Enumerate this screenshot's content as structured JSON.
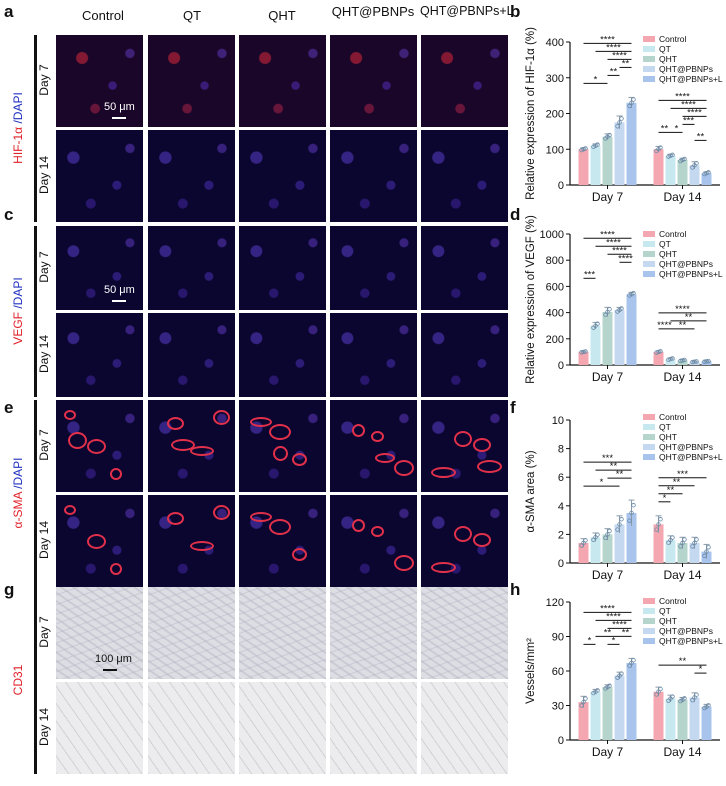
{
  "panel_letters": {
    "a": "a",
    "b": "b",
    "c": "c",
    "d": "d",
    "e": "e",
    "f": "f",
    "g": "g",
    "h": "h"
  },
  "columns": [
    "Control",
    "QT",
    "QHT",
    "QHT@PBNPs",
    "QHT@PBNPs+L"
  ],
  "days": [
    "Day 7",
    "Day 14"
  ],
  "stains": [
    {
      "first": "HIF-1α",
      "sep": " /",
      "second": "DAPI",
      "first_color": "#e0202a",
      "second_color": "#2030c0"
    },
    {
      "first": "VEGF",
      "sep": " /",
      "second": "DAPI",
      "first_color": "#e0202a",
      "second_color": "#2030c0"
    },
    {
      "first": "α-SMA",
      "sep": " /",
      "second": "DAPI",
      "first_color": "#e0202a",
      "second_color": "#2030c0"
    },
    {
      "first": "CD31",
      "sep": "",
      "second": "",
      "first_color": "#e0202a",
      "second_color": "#2030c0"
    }
  ],
  "scale_bars": [
    "50 μm",
    "50 μm",
    "",
    "100 μm"
  ],
  "legend": [
    "Control",
    "QT",
    "QHT",
    "QHT@PBNPs",
    "QHT@PBNPs+L"
  ],
  "series_colors": [
    "#f4a7b0",
    "#c8e8f0",
    "#b4d4cc",
    "#c4d8f0",
    "#a8c4ec"
  ],
  "chart_data": [
    {
      "type": "bar",
      "panel": "b",
      "categories": [
        "Day 7",
        "Day 14"
      ],
      "ylabel": "Relative expression of HIF-1α (%)",
      "ylim": [
        0,
        400
      ],
      "yticks": [
        0,
        100,
        200,
        300,
        400
      ],
      "series": [
        {
          "name": "Control",
          "values": [
            100,
            100
          ]
        },
        {
          "name": "QT",
          "values": [
            110,
            82
          ]
        },
        {
          "name": "QHT",
          "values": [
            135,
            70
          ]
        },
        {
          "name": "QHT@PBNPs",
          "values": [
            175,
            55
          ]
        },
        {
          "name": "QHT@PBNPs+L",
          "values": [
            230,
            33
          ]
        }
      ],
      "errors": [
        [
          4,
          8
        ],
        [
          5,
          4
        ],
        [
          8,
          5
        ],
        [
          18,
          10
        ],
        [
          15,
          4
        ]
      ],
      "sig": [
        [
          [
            "****"
          ],
          [
            "****"
          ],
          [
            "****"
          ],
          [
            "**"
          ],
          [
            "**"
          ],
          [
            "*"
          ]
        ],
        [
          [
            "****"
          ],
          [
            "****"
          ],
          [
            "****"
          ],
          [
            "***"
          ],
          [
            "*"
          ],
          [
            "**"
          ],
          [
            "**"
          ]
        ]
      ],
      "brackets": [
        {
          "g": 0,
          "from": 0,
          "to": 4,
          "level": 6,
          "label": "****"
        },
        {
          "g": 0,
          "from": 1,
          "to": 4,
          "level": 5,
          "label": "****"
        },
        {
          "g": 0,
          "from": 2,
          "to": 4,
          "level": 4,
          "label": "****"
        },
        {
          "g": 0,
          "from": 3,
          "to": 4,
          "level": 3,
          "label": "**"
        },
        {
          "g": 0,
          "from": 2,
          "to": 3,
          "level": 2,
          "label": "**"
        },
        {
          "g": 0,
          "from": 0,
          "to": 2,
          "level": 1,
          "label": "*"
        },
        {
          "g": 1,
          "from": 0,
          "to": 4,
          "level": 5,
          "label": "****"
        },
        {
          "g": 1,
          "from": 1,
          "to": 4,
          "level": 4,
          "label": "****"
        },
        {
          "g": 1,
          "from": 2,
          "to": 4,
          "level": 3,
          "label": "****"
        },
        {
          "g": 1,
          "from": 2,
          "to": 3,
          "level": 2,
          "label": "***"
        },
        {
          "g": 1,
          "from": 1,
          "to": 2,
          "level": 1,
          "label": "*"
        },
        {
          "g": 1,
          "from": 0,
          "to": 1,
          "level": 1,
          "label": "**"
        },
        {
          "g": 1,
          "from": 3,
          "to": 4,
          "level": 0,
          "label": "**"
        }
      ]
    },
    {
      "type": "bar",
      "panel": "d",
      "categories": [
        "Day 7",
        "Day 14"
      ],
      "ylabel": "Relative expression of VEGF (%)",
      "ylim": [
        0,
        1000
      ],
      "yticks": [
        0,
        200,
        400,
        600,
        800,
        1000
      ],
      "series": [
        {
          "name": "Control",
          "values": [
            100,
            100
          ]
        },
        {
          "name": "QT",
          "values": [
            300,
            45
          ]
        },
        {
          "name": "QHT",
          "values": [
            405,
            35
          ]
        },
        {
          "name": "QHT@PBNPs",
          "values": [
            420,
            25
          ]
        },
        {
          "name": "QHT@PBNPs+L",
          "values": [
            540,
            28
          ]
        }
      ],
      "errors": [
        [
          5,
          8
        ],
        [
          25,
          8
        ],
        [
          35,
          6
        ],
        [
          20,
          4
        ],
        [
          15,
          4
        ]
      ],
      "brackets": [
        {
          "g": 0,
          "from": 0,
          "to": 4,
          "level": 6,
          "label": "****"
        },
        {
          "g": 0,
          "from": 1,
          "to": 4,
          "level": 5,
          "label": "****"
        },
        {
          "g": 0,
          "from": 2,
          "to": 4,
          "level": 4,
          "label": "****"
        },
        {
          "g": 0,
          "from": 3,
          "to": 4,
          "level": 3,
          "label": "****"
        },
        {
          "g": 0,
          "from": 0,
          "to": 1,
          "level": 1,
          "label": "***"
        },
        {
          "g": 1,
          "from": 0,
          "to": 4,
          "level": 4,
          "label": "****"
        },
        {
          "g": 1,
          "from": 1,
          "to": 4,
          "level": 3,
          "label": "**"
        },
        {
          "g": 1,
          "from": 1,
          "to": 3,
          "level": 2,
          "label": "**"
        },
        {
          "g": 1,
          "from": 0,
          "to": 1,
          "level": 2,
          "label": "****"
        }
      ]
    },
    {
      "type": "bar",
      "panel": "f",
      "categories": [
        "Day 7",
        "Day 14"
      ],
      "ylabel": "α-SMA area (%)",
      "ylim": [
        0,
        10
      ],
      "yticks": [
        0,
        2,
        4,
        6,
        8,
        10
      ],
      "series": [
        {
          "name": "Control",
          "values": [
            1.4,
            2.7
          ]
        },
        {
          "name": "QT",
          "values": [
            1.8,
            1.6
          ]
        },
        {
          "name": "QHT",
          "values": [
            2.0,
            1.4
          ]
        },
        {
          "name": "QHT@PBNPs",
          "values": [
            2.7,
            1.4
          ]
        },
        {
          "name": "QHT@PBNPs+L",
          "values": [
            3.5,
            0.8
          ]
        }
      ],
      "errors": [
        [
          0.3,
          0.6
        ],
        [
          0.3,
          0.3
        ],
        [
          0.4,
          0.4
        ],
        [
          0.6,
          0.4
        ],
        [
          0.9,
          0.5
        ]
      ],
      "brackets": [
        {
          "g": 0,
          "from": 0,
          "to": 4,
          "level": 4,
          "label": "***"
        },
        {
          "g": 0,
          "from": 1,
          "to": 4,
          "level": 3,
          "label": "**"
        },
        {
          "g": 0,
          "from": 2,
          "to": 4,
          "level": 2,
          "label": "**"
        },
        {
          "g": 0,
          "from": 0,
          "to": 3,
          "level": 1,
          "label": "*"
        },
        {
          "g": 1,
          "from": 0,
          "to": 4,
          "level": 4,
          "label": "***"
        },
        {
          "g": 1,
          "from": 0,
          "to": 3,
          "level": 3,
          "label": "**"
        },
        {
          "g": 1,
          "from": 0,
          "to": 2,
          "level": 2,
          "label": "**"
        },
        {
          "g": 1,
          "from": 0,
          "to": 1,
          "level": 1,
          "label": "*"
        }
      ]
    },
    {
      "type": "bar",
      "panel": "h",
      "categories": [
        "Day 7",
        "Day 14"
      ],
      "ylabel": "Vessels/mm²",
      "ylim": [
        0,
        120
      ],
      "yticks": [
        0,
        30,
        60,
        90,
        120
      ],
      "series": [
        {
          "name": "Control",
          "values": [
            33,
            42
          ]
        },
        {
          "name": "QT",
          "values": [
            42,
            36
          ]
        },
        {
          "name": "QHT",
          "values": [
            46,
            35
          ]
        },
        {
          "name": "QHT@PBNPs",
          "values": [
            56,
            37
          ]
        },
        {
          "name": "QHT@PBNPs+L",
          "values": [
            67,
            29
          ]
        }
      ],
      "errors": [
        [
          5,
          4
        ],
        [
          2,
          3
        ],
        [
          2,
          2
        ],
        [
          3,
          4
        ],
        [
          4,
          2
        ]
      ],
      "brackets": [
        {
          "g": 0,
          "from": 0,
          "to": 4,
          "level": 5,
          "label": "****"
        },
        {
          "g": 0,
          "from": 1,
          "to": 4,
          "level": 4,
          "label": "****"
        },
        {
          "g": 0,
          "from": 2,
          "to": 4,
          "level": 3,
          "label": "****"
        },
        {
          "g": 0,
          "from": 3,
          "to": 4,
          "level": 2,
          "label": "**"
        },
        {
          "g": 0,
          "from": 1,
          "to": 3,
          "level": 2,
          "label": "**"
        },
        {
          "g": 0,
          "from": 2,
          "to": 3,
          "level": 1,
          "label": "*"
        },
        {
          "g": 0,
          "from": 0,
          "to": 1,
          "level": 1,
          "label": "*"
        },
        {
          "g": 1,
          "from": 0,
          "to": 4,
          "level": 2,
          "label": "**"
        },
        {
          "g": 1,
          "from": 3,
          "to": 4,
          "level": 1,
          "label": "*"
        }
      ]
    }
  ]
}
